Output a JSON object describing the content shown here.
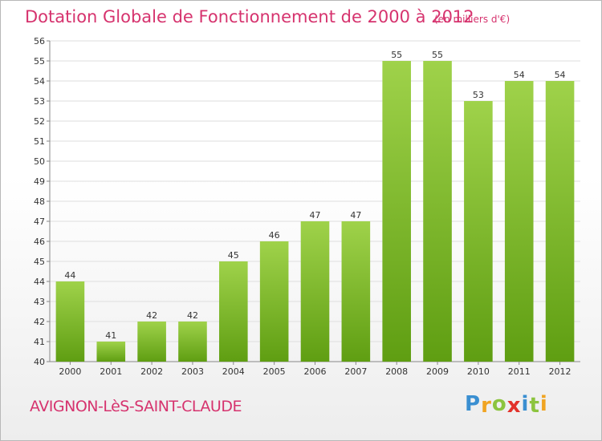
{
  "header": {
    "title": "Dotation Globale de Fonctionnement de 2000 à 2012",
    "unit": "(en milliers d'€)"
  },
  "footer": {
    "commune": "AVIGNON-LèS-SAINT-CLAUDE",
    "logo_letters": [
      {
        "char": "P",
        "color": "#3a8fd1"
      },
      {
        "char": "r",
        "color": "#f0a422"
      },
      {
        "char": "o",
        "color": "#8cc43e"
      },
      {
        "char": "x",
        "color": "#e2322b"
      },
      {
        "char": "i",
        "color": "#3a8fd1"
      },
      {
        "char": "t",
        "color": "#8cc43e"
      },
      {
        "char": "i",
        "color": "#f0a422"
      }
    ]
  },
  "colors": {
    "accent": "#d6336e",
    "bar_top": "#9fd24a",
    "bar_bottom": "#5f9e12",
    "grid": "#dedede"
  },
  "chart_data": {
    "type": "bar",
    "title": "Dotation Globale de Fonctionnement de 2000 à 2012",
    "subtitle": "(en milliers d'€)",
    "categories": [
      "2000",
      "2001",
      "2002",
      "2003",
      "2004",
      "2005",
      "2006",
      "2007",
      "2008",
      "2009",
      "2010",
      "2011",
      "2012"
    ],
    "values": [
      44,
      41,
      42,
      42,
      45,
      46,
      47,
      47,
      55,
      55,
      53,
      54,
      54
    ],
    "ylim": [
      40,
      56
    ],
    "yticks": [
      40,
      41,
      42,
      43,
      44,
      45,
      46,
      47,
      48,
      49,
      50,
      51,
      52,
      53,
      54,
      55,
      56
    ],
    "grid": true,
    "data_labels": true
  }
}
